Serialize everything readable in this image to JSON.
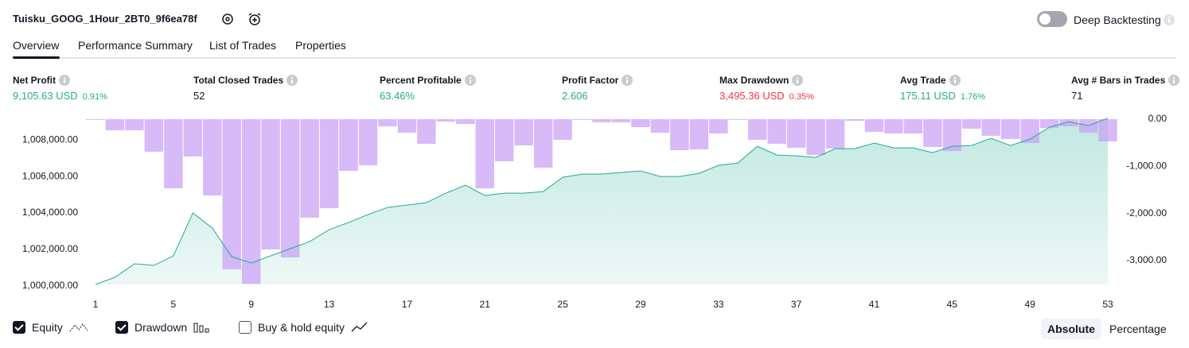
{
  "header": {
    "title": "Tuisku_GOOG_1Hour_2BT0_9f6ea78f",
    "toggle_label": "Deep Backtesting",
    "toggle_on": false
  },
  "tabs": {
    "items": [
      "Overview",
      "Performance Summary",
      "List of Trades",
      "Properties"
    ],
    "active": 0
  },
  "metrics": [
    {
      "label": "Net Profit",
      "value": "9,105.63 USD",
      "pct": "0.91%",
      "tone": "positive"
    },
    {
      "label": "Total Closed Trades",
      "value": "52",
      "tone": "neutral"
    },
    {
      "label": "Percent Profitable",
      "value": "63.46%",
      "tone": "positive"
    },
    {
      "label": "Profit Factor",
      "value": "2.606",
      "tone": "positive"
    },
    {
      "label": "Max Drawdown",
      "value": "3,495.36 USD",
      "pct": "0.35%",
      "tone": "negative"
    },
    {
      "label": "Avg Trade",
      "value": "175.11 USD",
      "pct": "1.76%",
      "tone": "positive"
    },
    {
      "label": "Avg # Bars in Trades",
      "value": "71",
      "tone": "neutral"
    }
  ],
  "chart_data": {
    "type": "combo",
    "x": [
      1,
      2,
      3,
      4,
      5,
      6,
      7,
      8,
      9,
      10,
      11,
      12,
      13,
      14,
      15,
      16,
      17,
      18,
      19,
      20,
      21,
      22,
      23,
      24,
      25,
      26,
      27,
      28,
      29,
      30,
      31,
      32,
      33,
      34,
      35,
      36,
      37,
      38,
      39,
      40,
      41,
      42,
      43,
      44,
      45,
      46,
      47,
      48,
      49,
      50,
      51,
      52,
      53
    ],
    "xlim": [
      1,
      53
    ],
    "xticks": [
      1,
      5,
      9,
      13,
      17,
      21,
      25,
      29,
      33,
      37,
      41,
      45,
      49,
      53
    ],
    "ylim": [
      1000000,
      1009050
    ],
    "yticks": [
      {
        "value": 1000000,
        "label": "1,000,000.00"
      },
      {
        "value": 1002000,
        "label": "1,002,000.00"
      },
      {
        "value": 1004000,
        "label": "1,004,000.00"
      },
      {
        "value": 1006000,
        "label": "1,006,000.00"
      },
      {
        "value": 1008000,
        "label": "1,008,000.00"
      }
    ],
    "y2lim": [
      -3508,
      0
    ],
    "y2ticks": [
      {
        "value": 0,
        "label": "0.00"
      },
      {
        "value": -1000,
        "label": "-1,000.00"
      },
      {
        "value": -2000,
        "label": "-2,000.00"
      },
      {
        "value": -3000,
        "label": "-3,000.00"
      }
    ],
    "series": [
      {
        "name": "Equity",
        "type": "area",
        "color": "#22ab94",
        "checked": true,
        "values": [
          1000000,
          1000391,
          1001130,
          1001043,
          1001565,
          1003913,
          1003087,
          1001522,
          1001174,
          1001565,
          1001957,
          1002348,
          1003000,
          1003391,
          1003826,
          1004217,
          1004348,
          1004478,
          1005000,
          1005435,
          1004870,
          1005000,
          1005000,
          1005087,
          1005870,
          1006043,
          1006043,
          1006130,
          1006217,
          1005913,
          1005913,
          1006087,
          1006522,
          1006652,
          1007565,
          1007087,
          1007043,
          1006957,
          1007435,
          1007435,
          1007739,
          1007478,
          1007478,
          1007217,
          1007565,
          1007609,
          1008000,
          1007609,
          1007957,
          1008609,
          1008913,
          1008696,
          1009106
        ]
      },
      {
        "name": "Drawdown",
        "type": "bar",
        "axis": "y2",
        "color": "#c89cf7",
        "checked": true,
        "values": [
          -17,
          -236,
          -236,
          -691,
          -1467,
          -793,
          -1619,
          -3187,
          -3495,
          -2766,
          -2934,
          -2091,
          -1889,
          -1096,
          -978,
          -152,
          -287,
          -523,
          -51,
          -101,
          -1467,
          -894,
          -557,
          -1029,
          -439,
          -17,
          -67,
          -67,
          -169,
          -287,
          -658,
          -641,
          -304,
          -17,
          -439,
          -523,
          -607,
          -759,
          -624,
          -34,
          -270,
          -304,
          -304,
          -590,
          -675,
          -202,
          -354,
          -422,
          -506,
          -186,
          -152,
          -287,
          -472
        ]
      }
    ],
    "inactive_legend": [
      "Buy & hold equity"
    ]
  },
  "view_modes": {
    "items": [
      "Absolute",
      "Percentage"
    ],
    "active": 0
  }
}
